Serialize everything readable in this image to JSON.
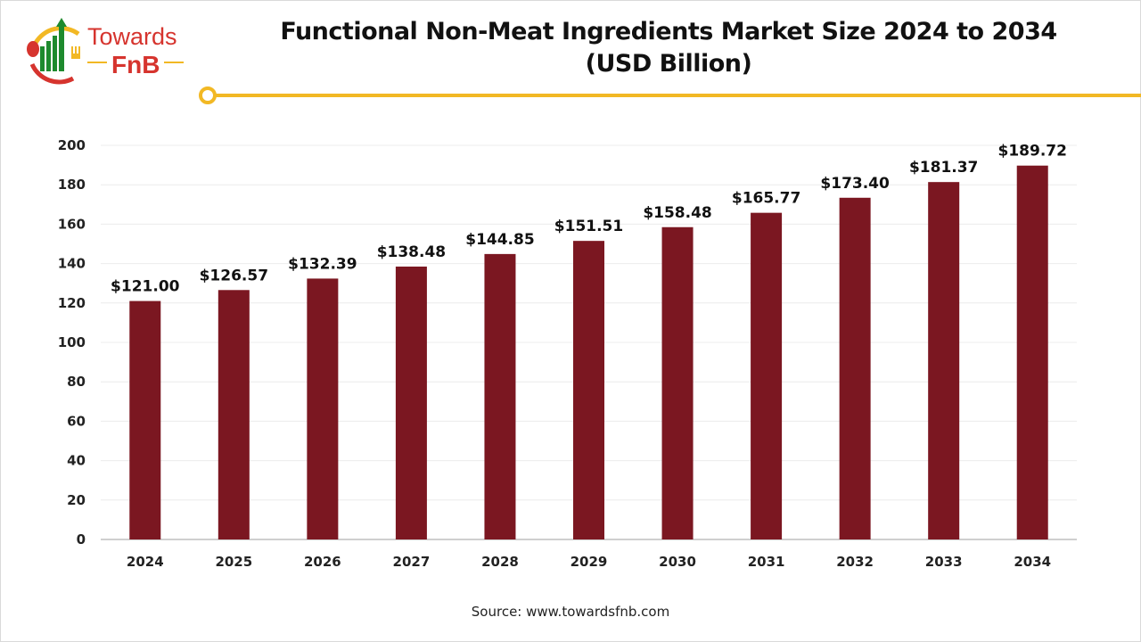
{
  "logo": {
    "text_top": "Towards",
    "text_bottom": "FnB"
  },
  "chart_data": {
    "type": "bar",
    "title": "Functional Non-Meat Ingredients Market Size 2024 to 2034",
    "subtitle": "(USD Billion)",
    "categories": [
      "2024",
      "2025",
      "2026",
      "2027",
      "2028",
      "2029",
      "2030",
      "2031",
      "2032",
      "2033",
      "2034"
    ],
    "values": [
      121.0,
      126.57,
      132.39,
      138.48,
      144.85,
      151.51,
      158.48,
      165.77,
      173.4,
      181.37,
      189.72
    ],
    "data_labels": [
      "$121.00",
      "$126.57",
      "$132.39",
      "$138.48",
      "$144.85",
      "$151.51",
      "$158.48",
      "$165.77",
      "$173.40",
      "$181.37",
      "$189.72"
    ],
    "yticks": [
      0,
      20,
      40,
      60,
      80,
      100,
      120,
      140,
      160,
      180,
      200
    ],
    "ylim": [
      0,
      200
    ],
    "xlabel": "",
    "ylabel": "",
    "grid": true,
    "legend": "none",
    "bar_color": "#7b1721",
    "accent_color": "#f2b824"
  },
  "source": "Source: www.towardsfnb.com"
}
